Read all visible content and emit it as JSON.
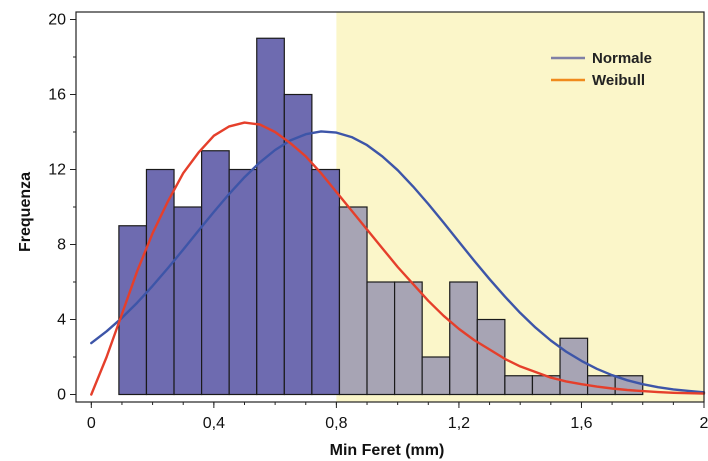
{
  "chart_data": {
    "type": "bar",
    "title": "",
    "xlabel": "Min Feret (mm)",
    "ylabel": "Frequenza",
    "xlim": [
      -0.05,
      2.0
    ],
    "ylim": [
      -0.4,
      20.4
    ],
    "x_ticks": [
      0,
      0.4,
      0.8,
      1.2,
      1.6,
      2
    ],
    "x_tick_labels": [
      "0",
      "0,4",
      "0,8",
      "1,2",
      "1,6",
      "2"
    ],
    "y_ticks": [
      0,
      4,
      8,
      12,
      16,
      20
    ],
    "y_tick_labels": [
      "0",
      "4",
      "8",
      "12",
      "16",
      "20"
    ],
    "shaded_region": {
      "from": 0.8,
      "to": 2.0,
      "color": "#fbf6c9"
    },
    "bin_width": 0.09,
    "bins": [
      {
        "x0": 0.09,
        "count": 9
      },
      {
        "x0": 0.18,
        "count": 12
      },
      {
        "x0": 0.27,
        "count": 10
      },
      {
        "x0": 0.36,
        "count": 13
      },
      {
        "x0": 0.45,
        "count": 12
      },
      {
        "x0": 0.54,
        "count": 19
      },
      {
        "x0": 0.63,
        "count": 16
      },
      {
        "x0": 0.72,
        "count": 12
      },
      {
        "x0": 0.81,
        "count": 10
      },
      {
        "x0": 0.9,
        "count": 6
      },
      {
        "x0": 0.99,
        "count": 6
      },
      {
        "x0": 1.08,
        "count": 2
      },
      {
        "x0": 1.17,
        "count": 6
      },
      {
        "x0": 1.26,
        "count": 4
      },
      {
        "x0": 1.35,
        "count": 1
      },
      {
        "x0": 1.44,
        "count": 1
      },
      {
        "x0": 1.53,
        "count": 3
      },
      {
        "x0": 1.62,
        "count": 1
      },
      {
        "x0": 1.71,
        "count": 1
      }
    ],
    "bar_color_left": "#6e6bb0",
    "bar_color_right": "#a7a4b4",
    "series": [
      {
        "name": "Normale",
        "color": "#3d55a8",
        "legend_color": "#8080a6",
        "x": [
          0,
          0.05,
          0.1,
          0.15,
          0.2,
          0.25,
          0.3,
          0.35,
          0.4,
          0.45,
          0.5,
          0.55,
          0.6,
          0.65,
          0.7,
          0.75,
          0.8,
          0.85,
          0.9,
          0.95,
          1.0,
          1.05,
          1.1,
          1.15,
          1.2,
          1.25,
          1.3,
          1.35,
          1.4,
          1.45,
          1.5,
          1.55,
          1.6,
          1.65,
          1.7,
          1.75,
          1.8,
          1.85,
          1.9,
          1.95,
          2.0
        ],
        "y": [
          2.74,
          3.37,
          4.09,
          4.9,
          5.79,
          6.74,
          7.73,
          8.74,
          9.74,
          10.7,
          11.59,
          12.38,
          13.04,
          13.55,
          13.88,
          14.03,
          13.97,
          13.73,
          13.3,
          12.7,
          11.96,
          11.1,
          10.16,
          9.17,
          8.15,
          7.13,
          6.15,
          5.22,
          4.35,
          3.57,
          2.88,
          2.29,
          1.79,
          1.37,
          1.03,
          0.76,
          0.55,
          0.39,
          0.27,
          0.19,
          0.12
        ]
      },
      {
        "name": "Weibull",
        "color": "#e53f2b",
        "legend_color": "#f08a1c",
        "x": [
          0,
          0.05,
          0.1,
          0.15,
          0.2,
          0.25,
          0.3,
          0.35,
          0.4,
          0.45,
          0.5,
          0.55,
          0.6,
          0.65,
          0.7,
          0.75,
          0.8,
          0.85,
          0.9,
          0.95,
          1.0,
          1.05,
          1.1,
          1.15,
          1.2,
          1.25,
          1.3,
          1.35,
          1.4,
          1.45,
          1.5,
          1.55,
          1.6,
          1.65,
          1.7,
          1.75,
          1.8,
          1.85,
          1.9,
          1.95,
          2.0
        ],
        "y": [
          0,
          2.0,
          4.3,
          6.6,
          8.6,
          10.3,
          11.8,
          12.9,
          13.8,
          14.3,
          14.5,
          14.4,
          14.0,
          13.4,
          12.7,
          11.8,
          10.8,
          9.8,
          8.8,
          7.8,
          6.8,
          5.9,
          5.0,
          4.2,
          3.5,
          2.9,
          2.4,
          1.9,
          1.5,
          1.2,
          0.9,
          0.7,
          0.55,
          0.42,
          0.32,
          0.24,
          0.18,
          0.13,
          0.09,
          0.07,
          0.05
        ]
      }
    ],
    "legend_position": "top-right",
    "grid": false
  }
}
